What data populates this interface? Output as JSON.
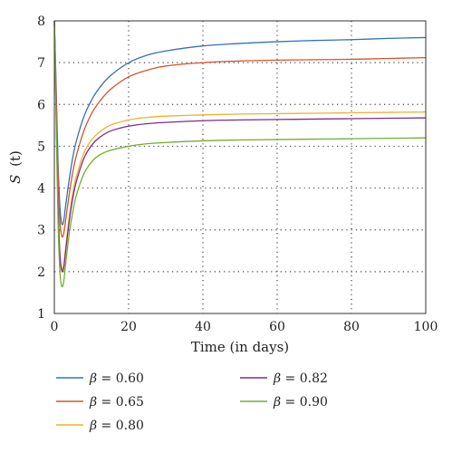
{
  "chart_data": {
    "type": "line",
    "xlabel": "Time (in days)",
    "ylabel_italic": "S",
    "ylabel_suffix": "(t)",
    "xlim": [
      0,
      100
    ],
    "ylim": [
      1,
      8
    ],
    "xticks": [
      "0",
      "20",
      "40",
      "60",
      "80",
      "100"
    ],
    "yticks": [
      "1",
      "2",
      "3",
      "4",
      "5",
      "6",
      "7",
      "8"
    ],
    "grid": true,
    "legend_position": "bottom",
    "legend_symbol": "β",
    "legend_equals": " = ",
    "series": [
      {
        "name": "0.60",
        "color": "#3670b8",
        "x": [
          0,
          0.5,
          1,
          1.5,
          2,
          2.5,
          3,
          4,
          5,
          6,
          8,
          10,
          12,
          15,
          20,
          25,
          30,
          40,
          50,
          60,
          70,
          80,
          90,
          100
        ],
        "y": [
          8.0,
          6.4,
          4.6,
          3.55,
          3.15,
          3.2,
          3.55,
          4.2,
          4.75,
          5.15,
          5.72,
          6.1,
          6.38,
          6.68,
          7.0,
          7.18,
          7.28,
          7.4,
          7.46,
          7.5,
          7.53,
          7.55,
          7.58,
          7.6
        ]
      },
      {
        "name": "0.65",
        "color": "#d4562a",
        "x": [
          0,
          0.5,
          1,
          1.5,
          2,
          2.5,
          3,
          4,
          5,
          6,
          8,
          10,
          12,
          15,
          20,
          25,
          30,
          40,
          50,
          60,
          70,
          80,
          90,
          100
        ],
        "y": [
          8.0,
          6.2,
          4.3,
          3.2,
          2.85,
          2.9,
          3.2,
          3.85,
          4.4,
          4.8,
          5.38,
          5.78,
          6.05,
          6.35,
          6.66,
          6.82,
          6.92,
          7.0,
          7.04,
          7.06,
          7.07,
          7.08,
          7.1,
          7.12
        ]
      },
      {
        "name": "0.80",
        "color": "#eeb12b",
        "x": [
          0,
          0.5,
          1,
          1.5,
          2,
          2.5,
          3,
          4,
          5,
          6,
          8,
          10,
          12,
          15,
          20,
          25,
          30,
          40,
          50,
          60,
          70,
          80,
          90,
          100
        ],
        "y": [
          8.0,
          5.8,
          3.6,
          2.45,
          2.08,
          2.15,
          2.55,
          3.3,
          3.9,
          4.3,
          4.85,
          5.15,
          5.33,
          5.5,
          5.63,
          5.69,
          5.72,
          5.75,
          5.77,
          5.78,
          5.79,
          5.8,
          5.81,
          5.82
        ]
      },
      {
        "name": "0.82",
        "color": "#7b2d8e",
        "x": [
          0,
          0.5,
          1,
          1.5,
          2,
          2.5,
          3,
          4,
          5,
          6,
          8,
          10,
          12,
          15,
          20,
          25,
          30,
          40,
          50,
          60,
          70,
          80,
          90,
          100
        ],
        "y": [
          8.0,
          5.75,
          3.55,
          2.4,
          2.02,
          2.08,
          2.45,
          3.2,
          3.78,
          4.18,
          4.72,
          5.02,
          5.2,
          5.36,
          5.48,
          5.54,
          5.57,
          5.61,
          5.63,
          5.64,
          5.65,
          5.66,
          5.67,
          5.68
        ]
      },
      {
        "name": "0.90",
        "color": "#77ac30",
        "x": [
          0,
          0.5,
          1,
          1.5,
          2,
          2.5,
          3,
          4,
          5,
          6,
          8,
          10,
          12,
          15,
          20,
          25,
          30,
          40,
          50,
          60,
          70,
          80,
          90,
          100
        ],
        "y": [
          8.0,
          5.5,
          3.2,
          2.0,
          1.65,
          1.75,
          2.15,
          2.9,
          3.45,
          3.85,
          4.35,
          4.62,
          4.78,
          4.9,
          5.0,
          5.06,
          5.09,
          5.13,
          5.15,
          5.16,
          5.17,
          5.18,
          5.19,
          5.2
        ]
      }
    ]
  }
}
